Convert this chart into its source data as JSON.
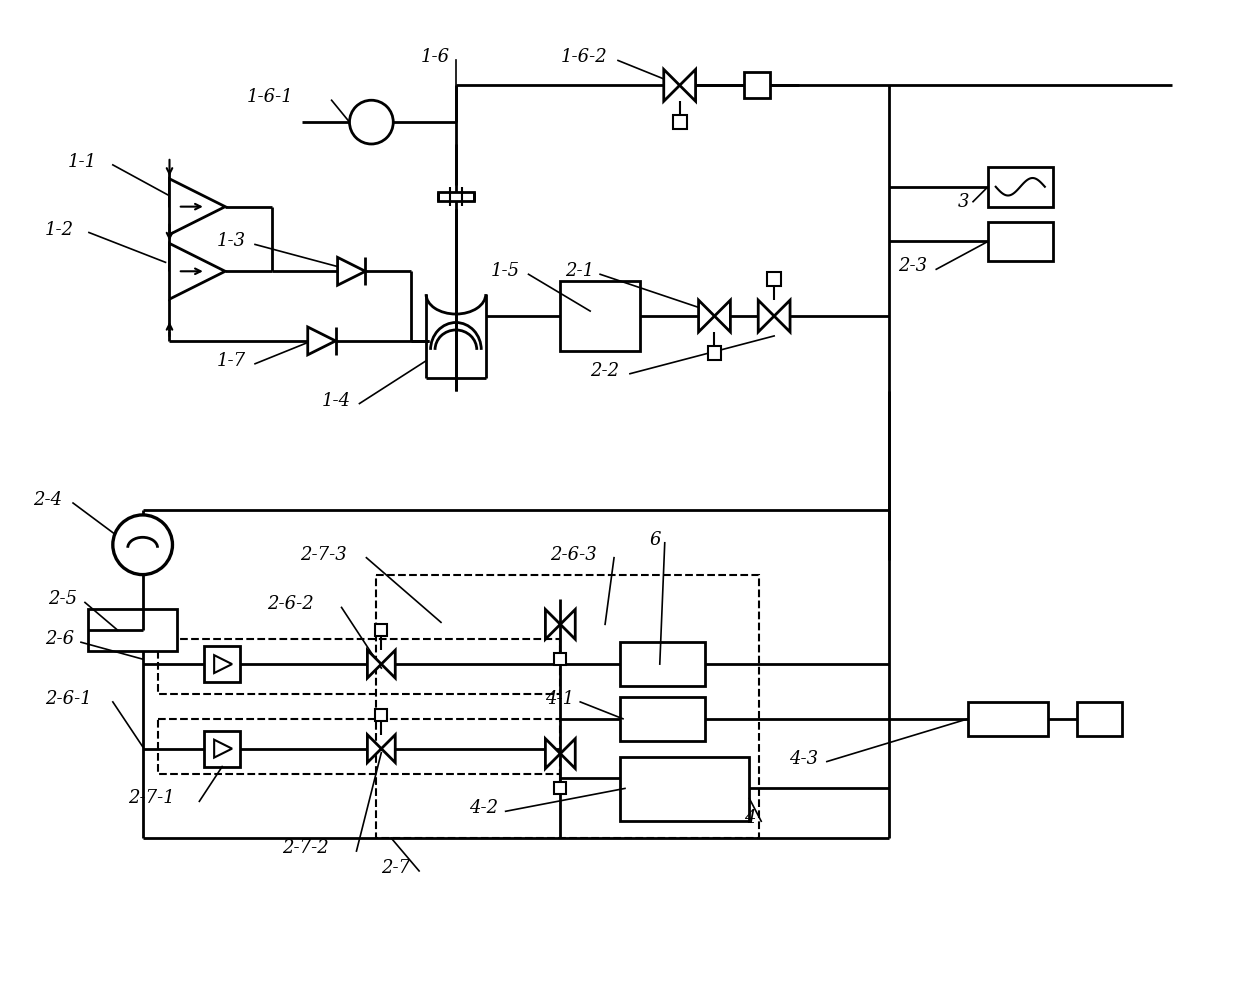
{
  "bg": "#ffffff",
  "lc": "#000000",
  "lw": 2.0,
  "fw": 12.4,
  "fh": 10.07
}
